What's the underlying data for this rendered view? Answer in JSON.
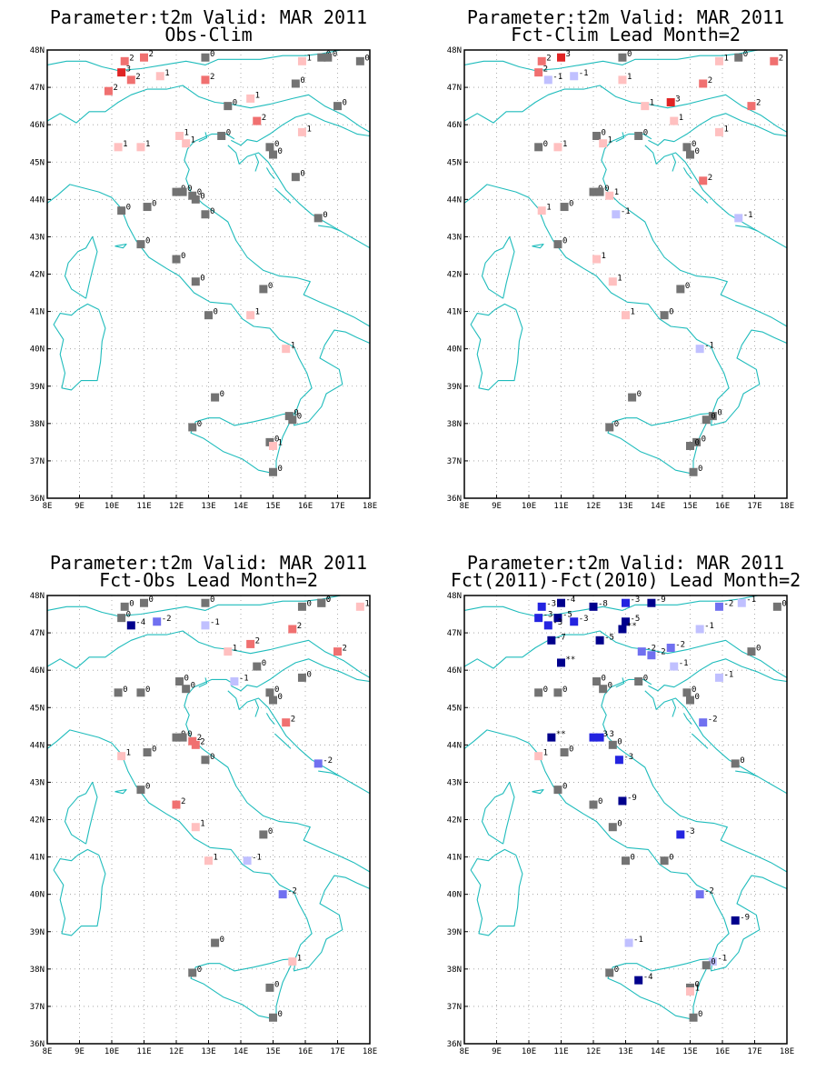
{
  "panels": [
    {
      "title1": "Parameter:t2m Valid: MAR 2011",
      "title2": "Obs-Clim",
      "stations": [
        [
          10.4,
          47.7,
          2
        ],
        [
          11,
          47.8,
          2
        ],
        [
          10.3,
          47.4,
          3
        ],
        [
          10.6,
          47.2,
          2
        ],
        [
          11.5,
          47.3,
          1
        ],
        [
          9.9,
          46.9,
          2
        ],
        [
          12.9,
          47.8,
          0
        ],
        [
          12.9,
          47.2,
          2
        ],
        [
          13.6,
          46.5,
          0
        ],
        [
          14.3,
          46.7,
          1
        ],
        [
          14.5,
          46.1,
          2
        ],
        [
          15.9,
          47.7,
          1
        ],
        [
          16.5,
          47.8,
          0
        ],
        [
          16.7,
          47.8,
          0
        ],
        [
          17.7,
          47.7,
          0
        ],
        [
          15.7,
          47.1,
          0
        ],
        [
          17,
          46.5,
          0
        ],
        [
          15.9,
          45.8,
          1
        ],
        [
          10.2,
          45.4,
          1
        ],
        [
          10.9,
          45.4,
          1
        ],
        [
          12.1,
          45.7,
          1
        ],
        [
          12.3,
          45.5,
          1
        ],
        [
          13.4,
          45.7,
          0
        ],
        [
          14.9,
          45.4,
          0
        ],
        [
          15,
          45.2,
          0
        ],
        [
          15.7,
          44.6,
          0
        ],
        [
          12,
          44.2,
          0
        ],
        [
          12.2,
          44.2,
          0
        ],
        [
          12.5,
          44.1,
          0
        ],
        [
          12.6,
          44,
          0
        ],
        [
          10.3,
          43.7,
          0
        ],
        [
          11.1,
          43.8,
          0
        ],
        [
          12.9,
          43.6,
          0
        ],
        [
          16.4,
          43.5,
          0
        ],
        [
          10.9,
          42.8,
          0
        ],
        [
          12,
          42.4,
          0
        ],
        [
          12.6,
          41.8,
          0
        ],
        [
          14.7,
          41.6,
          0
        ],
        [
          13,
          40.9,
          0
        ],
        [
          14.3,
          40.9,
          1
        ],
        [
          15.4,
          40,
          1
        ],
        [
          13.2,
          38.7,
          0
        ],
        [
          12.5,
          37.9,
          0
        ],
        [
          15.5,
          38.2,
          0
        ],
        [
          15.6,
          38.1,
          0
        ],
        [
          14.9,
          37.5,
          0
        ],
        [
          15,
          37.4,
          1
        ],
        [
          15,
          36.7,
          0
        ]
      ]
    },
    {
      "title1": "Parameter:t2m Valid: MAR 2011",
      "title2": "Fct-Clim Lead Month=2",
      "stations": [
        [
          10.4,
          47.7,
          2
        ],
        [
          11,
          47.8,
          3
        ],
        [
          10.3,
          47.4,
          2
        ],
        [
          10.6,
          47.2,
          -1
        ],
        [
          11.4,
          47.3,
          -1
        ],
        [
          12.9,
          47.8,
          0
        ],
        [
          12.9,
          47.2,
          1
        ],
        [
          14.4,
          46.6,
          3
        ],
        [
          13.6,
          46.5,
          1
        ],
        [
          14.5,
          46.1,
          1
        ],
        [
          15.9,
          47.7,
          1
        ],
        [
          16.5,
          47.8,
          0
        ],
        [
          17.6,
          47.7,
          2
        ],
        [
          15.4,
          47.1,
          2
        ],
        [
          16.9,
          46.5,
          2
        ],
        [
          15.9,
          45.8,
          1
        ],
        [
          10.3,
          45.4,
          0
        ],
        [
          10.9,
          45.4,
          1
        ],
        [
          12.1,
          45.7,
          0
        ],
        [
          12.3,
          45.5,
          1
        ],
        [
          13.4,
          45.7,
          0
        ],
        [
          14.9,
          45.4,
          0
        ],
        [
          15,
          45.2,
          0
        ],
        [
          15.4,
          44.5,
          2
        ],
        [
          12,
          44.2,
          0
        ],
        [
          12.2,
          44.2,
          0
        ],
        [
          12.5,
          44.1,
          1
        ],
        [
          10.4,
          43.7,
          1
        ],
        [
          11.1,
          43.8,
          0
        ],
        [
          12.7,
          43.6,
          -1
        ],
        [
          16.5,
          43.5,
          -1
        ],
        [
          10.9,
          42.8,
          0
        ],
        [
          12.1,
          42.4,
          1
        ],
        [
          12.6,
          41.8,
          1
        ],
        [
          14.7,
          41.6,
          0
        ],
        [
          13,
          40.9,
          1
        ],
        [
          14.2,
          40.9,
          0
        ],
        [
          15.3,
          40,
          -1
        ],
        [
          13.2,
          38.7,
          0
        ],
        [
          12.5,
          37.9,
          0
        ],
        [
          15.7,
          38.2,
          0
        ],
        [
          15.5,
          38.1,
          0
        ],
        [
          15.2,
          37.5,
          0
        ],
        [
          15,
          37.4,
          0
        ],
        [
          15.1,
          36.7,
          0
        ]
      ]
    },
    {
      "title1": "Parameter:t2m Valid: MAR 2011",
      "title2": "Fct-Obs Lead Month=2",
      "stations": [
        [
          10.4,
          47.7,
          0
        ],
        [
          11,
          47.8,
          0
        ],
        [
          10.3,
          47.4,
          0
        ],
        [
          10.6,
          47.2,
          -4
        ],
        [
          11.4,
          47.3,
          -2
        ],
        [
          12.9,
          47.8,
          0
        ],
        [
          12.9,
          47.2,
          -1
        ],
        [
          14.3,
          46.7,
          2
        ],
        [
          13.6,
          46.5,
          1
        ],
        [
          14.5,
          46.1,
          0
        ],
        [
          15.9,
          47.7,
          0
        ],
        [
          16.5,
          47.8,
          0
        ],
        [
          16.5,
          47.8,
          0
        ],
        [
          17.7,
          47.7,
          1
        ],
        [
          15.6,
          47.1,
          2
        ],
        [
          17,
          46.5,
          2
        ],
        [
          15.9,
          45.8,
          0
        ],
        [
          10.2,
          45.4,
          0
        ],
        [
          10.9,
          45.4,
          0
        ],
        [
          12.1,
          45.7,
          0
        ],
        [
          12.3,
          45.5,
          0
        ],
        [
          13.8,
          45.7,
          -1
        ],
        [
          14.9,
          45.4,
          0
        ],
        [
          15,
          45.2,
          0
        ],
        [
          15.4,
          44.6,
          2
        ],
        [
          12,
          44.2,
          0
        ],
        [
          12.2,
          44.2,
          0
        ],
        [
          12.5,
          44.1,
          2
        ],
        [
          12.6,
          44,
          2
        ],
        [
          10.3,
          43.7,
          1
        ],
        [
          11.1,
          43.8,
          0
        ],
        [
          12.9,
          43.6,
          0
        ],
        [
          16.4,
          43.5,
          -2
        ],
        [
          10.9,
          42.8,
          0
        ],
        [
          12,
          42.4,
          2
        ],
        [
          12.6,
          41.8,
          1
        ],
        [
          14.7,
          41.6,
          0
        ],
        [
          13,
          40.9,
          1
        ],
        [
          14.2,
          40.9,
          -1
        ],
        [
          15.3,
          40,
          -2
        ],
        [
          13.2,
          38.7,
          0
        ],
        [
          12.5,
          37.9,
          0
        ],
        [
          15.6,
          38.2,
          1
        ],
        [
          14.9,
          37.5,
          0
        ],
        [
          15,
          36.7,
          0
        ]
      ]
    },
    {
      "title1": "Parameter:t2m Valid: MAR 2011",
      "title2": "Fct(2011)-Fct(2010) Lead Month=2",
      "stations": [
        [
          10.4,
          47.7,
          -3
        ],
        [
          11,
          47.8,
          -4
        ],
        [
          12,
          47.7,
          -8
        ],
        [
          13,
          47.8,
          -3
        ],
        [
          13.8,
          47.8,
          -9
        ],
        [
          10.3,
          47.4,
          -3
        ],
        [
          10.9,
          47.4,
          -5
        ],
        [
          11.4,
          47.3,
          -3
        ],
        [
          10.6,
          47.2,
          -3
        ],
        [
          13,
          47.3,
          -5
        ],
        [
          12.9,
          47.1,
          -99
        ],
        [
          10.7,
          46.8,
          -7
        ],
        [
          12.2,
          46.8,
          -5
        ],
        [
          13.5,
          46.5,
          -2
        ],
        [
          13.8,
          46.4,
          -2
        ],
        [
          14.4,
          46.6,
          -2
        ],
        [
          14.5,
          46.1,
          -1
        ],
        [
          15.9,
          47.7,
          -2
        ],
        [
          16.6,
          47.8,
          -1
        ],
        [
          17.7,
          47.7,
          0
        ],
        [
          15.3,
          47.1,
          -1
        ],
        [
          16.9,
          46.5,
          0
        ],
        [
          15.9,
          45.8,
          -1
        ],
        [
          11,
          46.2,
          -99
        ],
        [
          10.3,
          45.4,
          0
        ],
        [
          10.9,
          45.4,
          0
        ],
        [
          12.1,
          45.7,
          0
        ],
        [
          12.3,
          45.5,
          0
        ],
        [
          13.4,
          45.7,
          0
        ],
        [
          14.9,
          45.4,
          0
        ],
        [
          15,
          45.2,
          0
        ],
        [
          15.4,
          44.6,
          -2
        ],
        [
          12,
          44.2,
          -3
        ],
        [
          12.2,
          44.2,
          -3
        ],
        [
          12.6,
          44,
          0
        ],
        [
          10.7,
          44.2,
          -99
        ],
        [
          10.3,
          43.7,
          1
        ],
        [
          11.1,
          43.8,
          0
        ],
        [
          12.8,
          43.6,
          -3
        ],
        [
          16.4,
          43.5,
          0
        ],
        [
          10.9,
          42.8,
          0
        ],
        [
          12,
          42.4,
          0
        ],
        [
          12.9,
          42.5,
          -9
        ],
        [
          12.6,
          41.8,
          0
        ],
        [
          14.7,
          41.6,
          -3
        ],
        [
          13,
          40.9,
          0
        ],
        [
          14.2,
          40.9,
          0
        ],
        [
          15.3,
          40,
          -2
        ],
        [
          16.4,
          39.3,
          -9
        ],
        [
          13.1,
          38.7,
          -1
        ],
        [
          12.5,
          37.9,
          0
        ],
        [
          13.4,
          37.7,
          -4
        ],
        [
          15.7,
          38.2,
          -1
        ],
        [
          15.5,
          38.1,
          0
        ],
        [
          15,
          37.5,
          0
        ],
        [
          15,
          37.4,
          1
        ],
        [
          15.1,
          36.7,
          0
        ]
      ]
    }
  ],
  "map": {
    "lon_min": 8,
    "lon_max": 18,
    "lat_min": 36,
    "lat_max": 48,
    "lon_labels": [
      "8E",
      "9E",
      "10E",
      "11E",
      "12E",
      "13E",
      "14E",
      "15E",
      "16E",
      "17E",
      "18E"
    ],
    "lat_labels": [
      "36N",
      "37N",
      "38N",
      "39N",
      "40N",
      "41N",
      "42N",
      "43N",
      "44N",
      "45N",
      "46N",
      "47N",
      "48N"
    ]
  },
  "colors": {
    "coast": "#1fbcbc",
    "zero": "#737373",
    "pos_1": "#ffc0c0",
    "pos_2": "#f07070",
    "pos_3": "#e02424",
    "pos_4": "#c00000",
    "neg_1": "#c0c0ff",
    "neg_2": "#7070f0",
    "neg_3": "#2424e0",
    "neg_4": "#00008c"
  }
}
